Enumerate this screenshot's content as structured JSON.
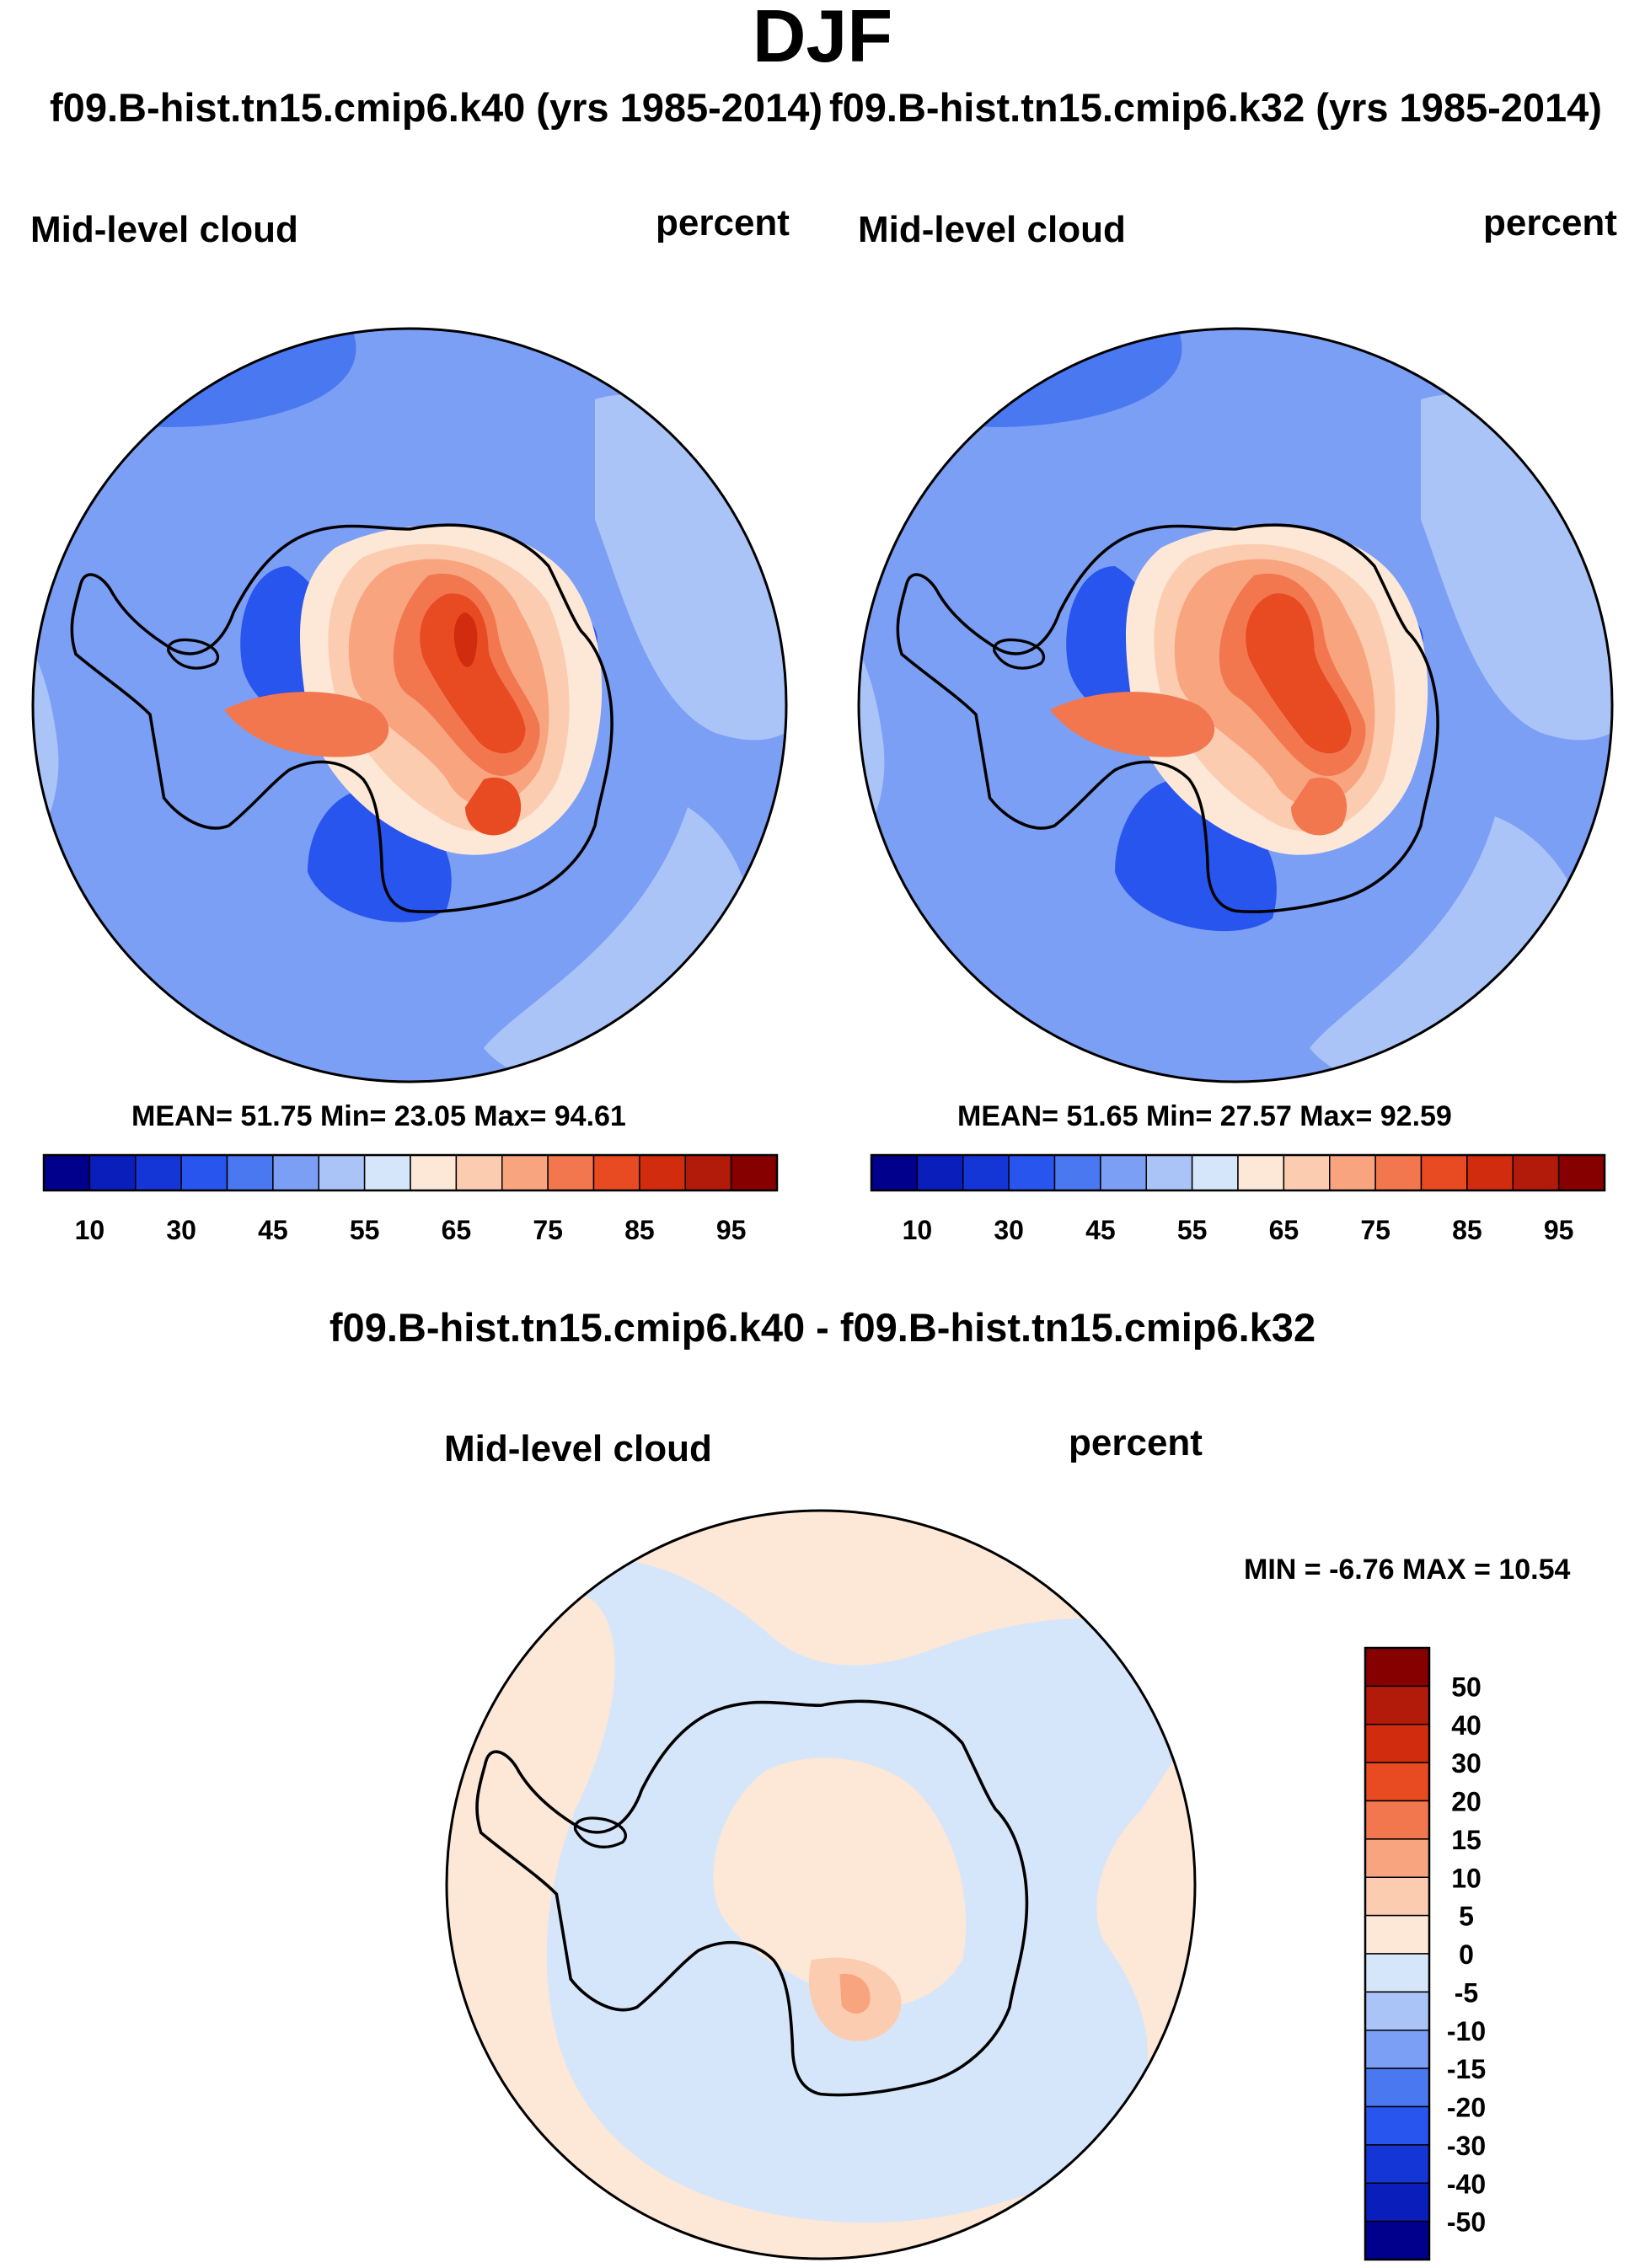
{
  "figure": {
    "title": "DJF",
    "case1_title": "f09.B-hist.tn15.cmip6.k40 (yrs 1985-2014)",
    "case2_title": "f09.B-hist.tn15.cmip6.k32 (yrs 1985-2014)",
    "diff_title": "f09.B-hist.tn15.cmip6.k40 - f09.B-hist.tn15.cmip6.k32"
  },
  "panels": [
    {
      "id": "case1",
      "variable": "Mid-level cloud",
      "units": "percent",
      "stats": "MEAN=  51.75  Min=  23.05  Max=  94.61",
      "mean": 51.75,
      "min": 23.05,
      "max": 94.61
    },
    {
      "id": "case2",
      "variable": "Mid-level cloud",
      "units": "percent",
      "stats": "MEAN=  51.65  Min=  27.57  Max=  92.59",
      "mean": 51.65,
      "min": 27.57,
      "max": 92.59
    },
    {
      "id": "diff",
      "variable": "Mid-level cloud",
      "units": "percent",
      "stats": "MIN =  -6.76 MAX =  10.54",
      "min": -6.76,
      "max": 10.54
    }
  ],
  "colorbars": {
    "abs": {
      "colors": [
        "#00008c",
        "#0a1ebc",
        "#1436d6",
        "#2855ee",
        "#4a78f0",
        "#7b9ff4",
        "#aac4f8",
        "#d6e6fa",
        "#fde7d6",
        "#fcccb0",
        "#f8a57f",
        "#f2774f",
        "#e84a22",
        "#d22c0e",
        "#b21a0a",
        "#870000"
      ],
      "tick_labels": [
        "10",
        "30",
        "45",
        "55",
        "65",
        "75",
        "85",
        "95"
      ]
    },
    "diff": {
      "colors": [
        "#870000",
        "#b21a0a",
        "#d22c0e",
        "#e84a22",
        "#f2774f",
        "#f8a57f",
        "#fcccb0",
        "#fde7d6",
        "#d6e6fa",
        "#aac4f8",
        "#7b9ff4",
        "#4a78f0",
        "#2855ee",
        "#1436d6",
        "#0a1ebc",
        "#00008c"
      ],
      "tick_labels": [
        "50",
        "40",
        "30",
        "20",
        "15",
        "10",
        "5",
        "0",
        "-5",
        "-10",
        "-15",
        "-20",
        "-30",
        "-40",
        "-50"
      ]
    }
  },
  "map_colors": {
    "ocean_base": "#7b9ff4",
    "ocean_light": "#aac4f8",
    "ocean_pale": "#d6e6fa",
    "ocean_dark": "#4a78f0",
    "coastal_dark": "#2855ee",
    "warm_1": "#fde7d6",
    "warm_2": "#fcccb0",
    "warm_3": "#f8a57f",
    "warm_4": "#f2774f",
    "warm_5": "#e84a22",
    "warm_6": "#d22c0e",
    "diff_ocean": "#fde7d6",
    "diff_neg": "#d6e6fa",
    "diff_pos": "#fcccb0",
    "diff_pos2": "#f8a57f"
  }
}
